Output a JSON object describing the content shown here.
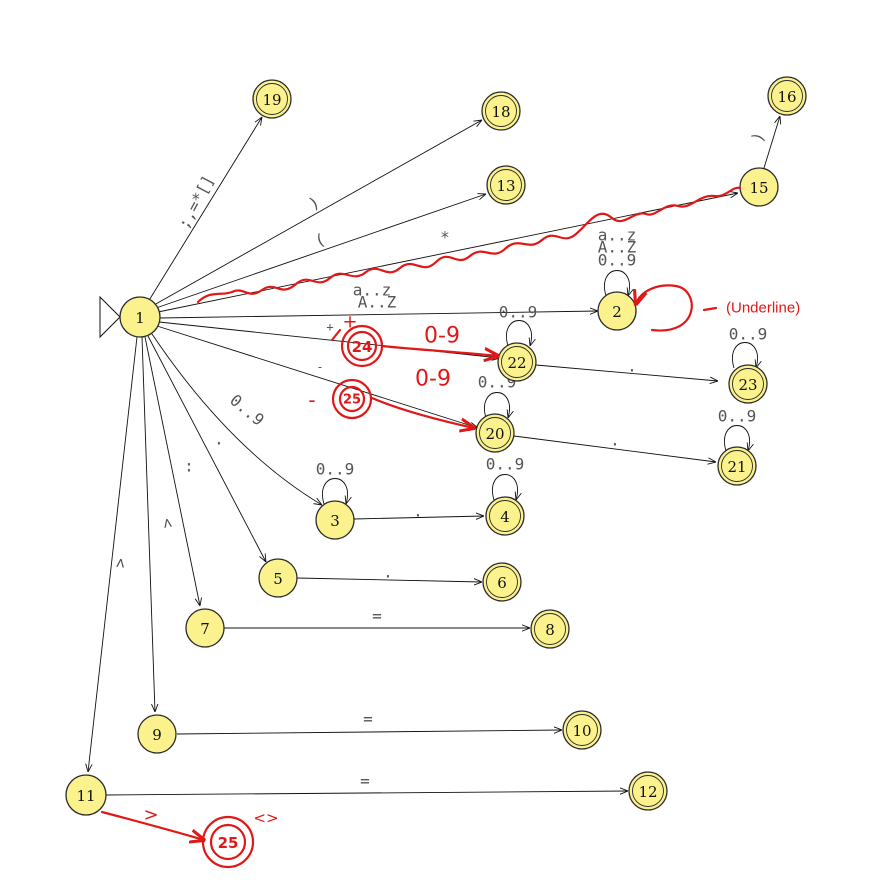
{
  "states": {
    "s1": "1",
    "s2": "2",
    "s3": "3",
    "s4": "4",
    "s5": "5",
    "s6": "6",
    "s7": "7",
    "s8": "8",
    "s9": "9",
    "s10": "10",
    "s11": "11",
    "s12": "12",
    "s13": "13",
    "s15": "15",
    "s16": "16",
    "s18": "18",
    "s19": "19",
    "s20": "20",
    "s21": "21",
    "s22": "22",
    "s23": "23"
  },
  "edge_labels": {
    "to19": ";,=*[]",
    "to18": ")",
    "to13": "(",
    "to15": "*",
    "to2_a": "a..z",
    "to2_b": "A..Z",
    "to22": "+",
    "to20": "-",
    "to3": "0..9",
    "to5": ".",
    "to7": ":",
    "to9": "<",
    "to11": ">",
    "e15_16": ")",
    "e3_4": ".",
    "e5_6": ".",
    "e7_8": "=",
    "e9_10": "=",
    "e11_12": "=",
    "e22_23": ".",
    "e20_21": "."
  },
  "loop_labels": {
    "l2_a": "a..z",
    "l2_b": "A..Z",
    "l2_c": "0..9",
    "l22": "0..9",
    "l20": "0..9",
    "l23": "0..9",
    "l21": "0..9",
    "l3": "0..9",
    "l4": "0..9"
  },
  "annotations": {
    "underline_note": "(Underline)",
    "plus_state": "24",
    "minus_state": "25",
    "gt_state": "25",
    "range_22": "0-9",
    "range_20": "0-9",
    "plus_sign": "+",
    "minus_sign": "-",
    "gt_sign": ">",
    "neq_sign": "<>"
  },
  "colors": {
    "state_fill": "#fbf28e",
    "ink": "#e01818",
    "edge": "#111111",
    "label": "#555555"
  }
}
